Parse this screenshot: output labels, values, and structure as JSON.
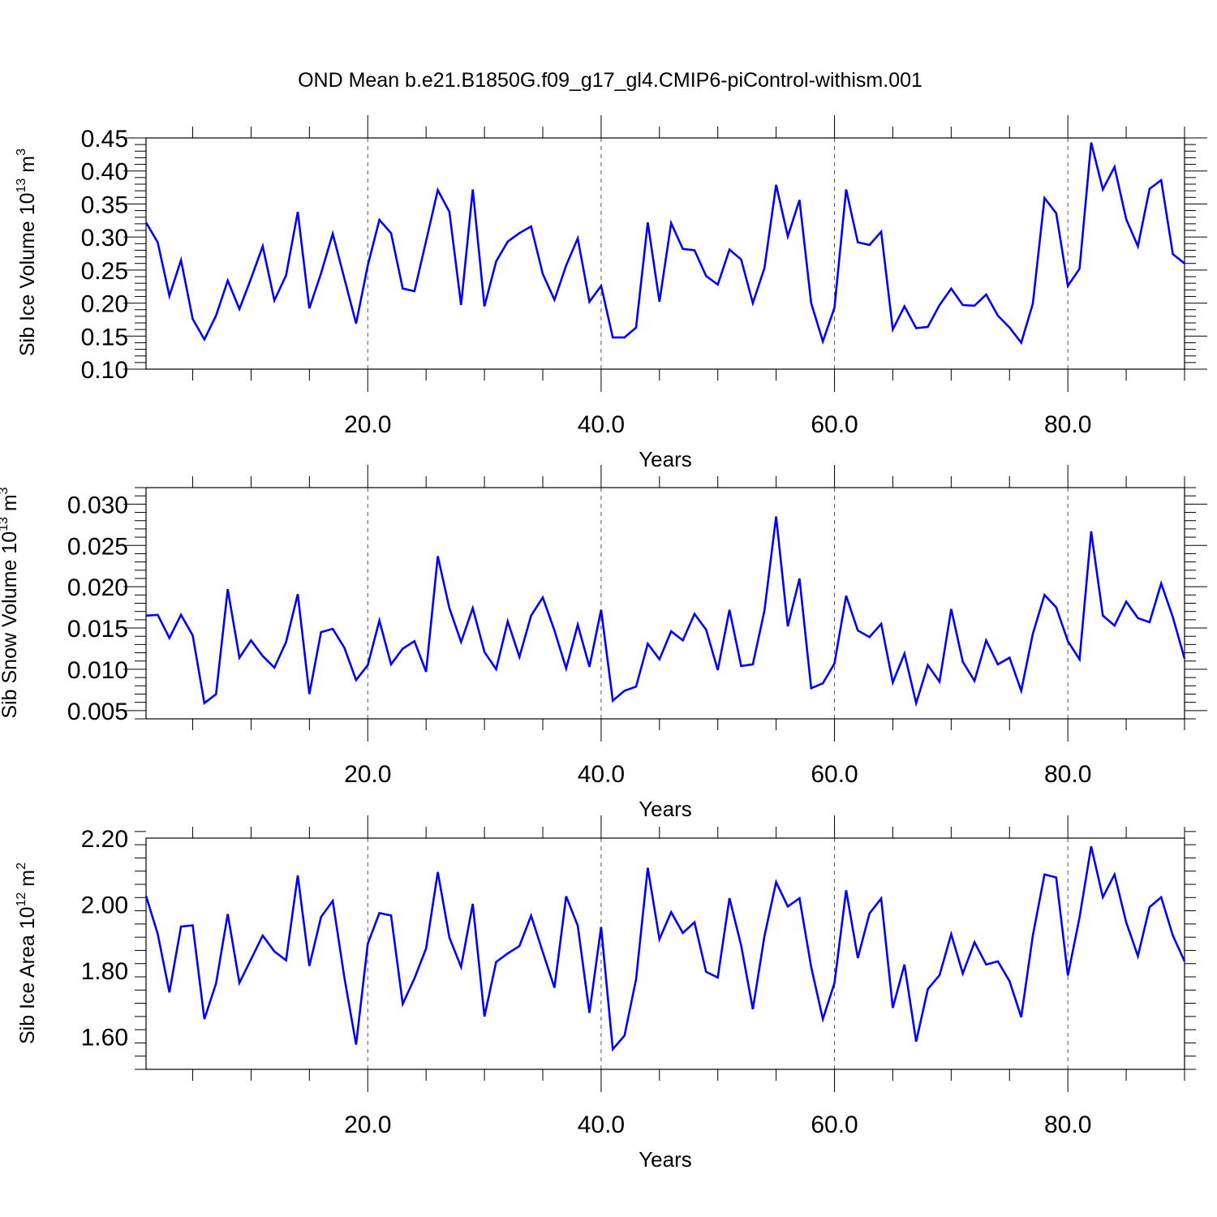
{
  "title": "OND Mean b.e21.B1850G.f09_g17_gl4.CMIP6-piControl-withism.001",
  "colors": {
    "line": "#0000ff",
    "axis": "#000000",
    "grid": "#555555"
  },
  "chart_data": [
    {
      "type": "line",
      "xlabel": "Years",
      "ylabel": {
        "prefix": "Sib Ice Volume 10",
        "exp": "13",
        "unit": " m",
        "unit_exp": "3"
      },
      "xlim": [
        1,
        90
      ],
      "ylim": [
        0.1,
        0.45
      ],
      "xticks": [
        20,
        40,
        60,
        80
      ],
      "xtick_labels": [
        "20.0",
        "40.0",
        "60.0",
        "80.0"
      ],
      "yticks": [
        0.1,
        0.15,
        0.2,
        0.25,
        0.3,
        0.35,
        0.4,
        0.45
      ],
      "ytick_labels": [
        "0.10",
        "0.15",
        "0.20",
        "0.25",
        "0.30",
        "0.35",
        "0.40",
        "0.45"
      ],
      "grid": "dashed vertical at major x ticks",
      "x_start": 1,
      "values": [
        0.322,
        0.292,
        0.211,
        0.265,
        0.176,
        0.145,
        0.181,
        0.234,
        0.191,
        0.237,
        0.286,
        0.204,
        0.242,
        0.338,
        0.192,
        0.245,
        0.305,
        0.237,
        0.169,
        0.257,
        0.326,
        0.306,
        0.222,
        0.218,
        0.294,
        0.371,
        0.338,
        0.197,
        0.372,
        0.195,
        0.263,
        0.293,
        0.306,
        0.316,
        0.244,
        0.205,
        0.257,
        0.298,
        0.202,
        0.226,
        0.148,
        0.148,
        0.163,
        0.322,
        0.202,
        0.321,
        0.282,
        0.28,
        0.241,
        0.228,
        0.281,
        0.266,
        0.2,
        0.253,
        0.379,
        0.301,
        0.356,
        0.2,
        0.142,
        0.193,
        0.372,
        0.292,
        0.288,
        0.308,
        0.16,
        0.195,
        0.162,
        0.164,
        0.197,
        0.222,
        0.197,
        0.196,
        0.213,
        0.181,
        0.163,
        0.14,
        0.199,
        0.359,
        0.336,
        0.226,
        0.252,
        0.443,
        0.372,
        0.406,
        0.327,
        0.286,
        0.373,
        0.386,
        0.274,
        0.26
      ]
    },
    {
      "type": "line",
      "xlabel": "Years",
      "ylabel": {
        "prefix": "Sib Snow Volume 10",
        "exp": "13",
        "unit": " m",
        "unit_exp": "3"
      },
      "xlim": [
        1,
        90
      ],
      "ylim": [
        0.004,
        0.032
      ],
      "xticks": [
        20,
        40,
        60,
        80
      ],
      "xtick_labels": [
        "20.0",
        "40.0",
        "60.0",
        "80.0"
      ],
      "yticks": [
        0.005,
        0.01,
        0.015,
        0.02,
        0.025,
        0.03
      ],
      "ytick_labels": [
        "0.005",
        "0.010",
        "0.015",
        "0.020",
        "0.025",
        "0.030"
      ],
      "grid": "dashed vertical at major x ticks",
      "x_start": 1,
      "values": [
        0.0165,
        0.0166,
        0.0138,
        0.0166,
        0.0141,
        0.0059,
        0.007,
        0.0197,
        0.0114,
        0.0135,
        0.0116,
        0.0102,
        0.0133,
        0.0191,
        0.007,
        0.0145,
        0.0149,
        0.0126,
        0.0087,
        0.0105,
        0.0159,
        0.0106,
        0.0125,
        0.0134,
        0.0097,
        0.0237,
        0.0174,
        0.0133,
        0.0174,
        0.0121,
        0.01,
        0.0158,
        0.0115,
        0.0165,
        0.0187,
        0.0147,
        0.0101,
        0.0154,
        0.0103,
        0.0172,
        0.0062,
        0.0074,
        0.0079,
        0.0131,
        0.0112,
        0.0146,
        0.0135,
        0.0167,
        0.0148,
        0.0099,
        0.0172,
        0.0104,
        0.0106,
        0.0171,
        0.0285,
        0.0152,
        0.021,
        0.0077,
        0.0083,
        0.0107,
        0.0189,
        0.0147,
        0.0139,
        0.0155,
        0.0084,
        0.0119,
        0.0059,
        0.0105,
        0.0085,
        0.0173,
        0.0109,
        0.0086,
        0.0135,
        0.0106,
        0.0114,
        0.0074,
        0.0143,
        0.019,
        0.0175,
        0.0134,
        0.0112,
        0.0267,
        0.0165,
        0.0153,
        0.0182,
        0.0162,
        0.0157,
        0.0204,
        0.0163,
        0.0113
      ]
    },
    {
      "type": "line",
      "xlabel": "Years",
      "ylabel": {
        "prefix": "Sib Ice Area 10",
        "exp": "12",
        "unit": " m",
        "unit_exp": "2"
      },
      "xlim": [
        1,
        90
      ],
      "ylim": [
        1.5,
        2.2
      ],
      "xticks": [
        20,
        40,
        60,
        80
      ],
      "xtick_labels": [
        "20.0",
        "40.0",
        "60.0",
        "80.0"
      ],
      "yticks": [
        1.6,
        1.8,
        2.0,
        2.2
      ],
      "ytick_labels": [
        "1.60",
        "1.80",
        "2.00",
        "2.20"
      ],
      "grid": "dashed vertical at major x ticks",
      "x_start": 1,
      "values": [
        2.025,
        1.91,
        1.733,
        1.932,
        1.936,
        1.652,
        1.76,
        1.97,
        1.762,
        1.833,
        1.905,
        1.857,
        1.83,
        2.087,
        1.813,
        1.961,
        2.01,
        1.777,
        1.575,
        1.88,
        1.973,
        1.966,
        1.698,
        1.775,
        1.866,
        2.097,
        1.899,
        1.81,
        2.001,
        1.66,
        1.825,
        1.851,
        1.873,
        1.965,
        1.855,
        1.747,
        2.024,
        1.935,
        1.671,
        1.931,
        1.561,
        1.602,
        1.773,
        2.11,
        1.894,
        1.976,
        1.913,
        1.945,
        1.795,
        1.778,
        2.018,
        1.875,
        1.682,
        1.903,
        2.067,
        1.993,
        2.018,
        1.81,
        1.652,
        1.761,
        2.042,
        1.837,
        1.972,
        2.017,
        1.686,
        1.817,
        1.584,
        1.743,
        1.785,
        1.909,
        1.79,
        1.885,
        1.817,
        1.827,
        1.767,
        1.658,
        1.905,
        2.09,
        2.081,
        1.784,
        1.96,
        2.175,
        2.021,
        2.09,
        1.945,
        1.843,
        1.991,
        2.021,
        1.905,
        1.827
      ]
    }
  ]
}
